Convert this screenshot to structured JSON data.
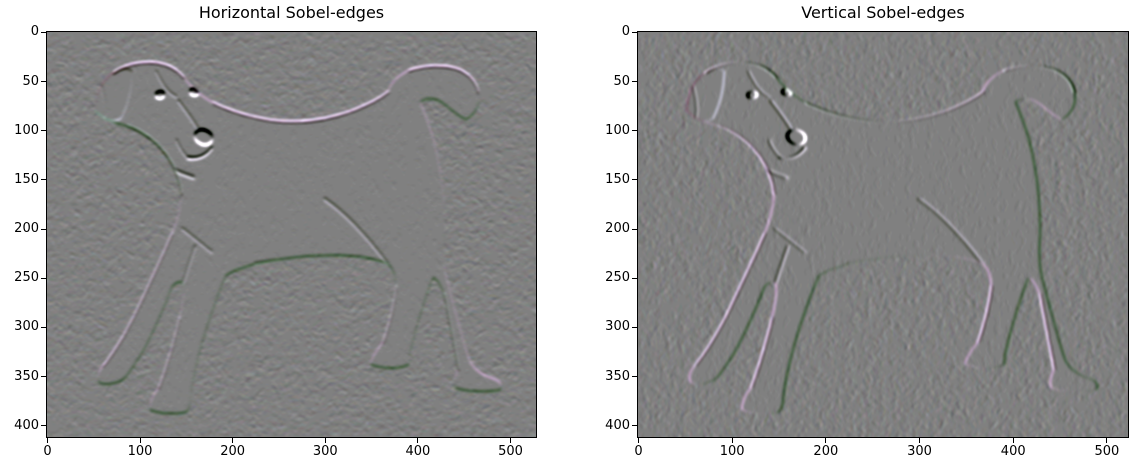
{
  "figure": {
    "background_color": "#ffffff",
    "text_color": "#000000",
    "spine_color": "#000000",
    "n_subplots": 2
  },
  "chart_data": [
    {
      "type": "heatmap",
      "title": "Horizontal Sobel-edges",
      "image_description": "Horizontal Sobel derivative of a photo of a dog standing on carpet facing left (head turned toward viewer, floppy ear, tail curled up over the back). Rendered as a mid-gray embossed relief: horizontal contours such as the top of the head, the back line and the tail show thin bright pink-white highlight lines with faint green fringes; the background carpet becomes fine mottled gray noise.",
      "x_ticks": [
        0,
        100,
        200,
        300,
        400,
        500
      ],
      "y_ticks": [
        0,
        50,
        100,
        150,
        200,
        250,
        300,
        350,
        400
      ],
      "x_range": [
        0,
        528
      ],
      "y_range": [
        412,
        0
      ],
      "grid": false,
      "legend": null
    },
    {
      "type": "heatmap",
      "title": "Vertical Sobel-edges",
      "image_description": "Vertical Sobel derivative of the same dog photo. Vertical contours dominate: the left edges of the legs, chest and ear appear as bright white-lavender lines, the right edges of the legs, tail and rump appear as thin dark olive-green lines, all over the same mottled mid-gray relief background.",
      "x_ticks": [
        0,
        100,
        200,
        300,
        400,
        500
      ],
      "y_ticks": [
        0,
        50,
        100,
        150,
        200,
        250,
        300,
        350,
        400
      ],
      "x_range": [
        0,
        523
      ],
      "y_range": [
        412,
        0
      ],
      "grid": false,
      "legend": null
    }
  ],
  "render_colors": {
    "relief_base_gray": "#969390",
    "dog_body_tone": "#aa9ea2",
    "bright_edge_highlight": "#ece2ea",
    "dark_edge_fringe": "#6b7050",
    "axis_text": "#000000"
  }
}
